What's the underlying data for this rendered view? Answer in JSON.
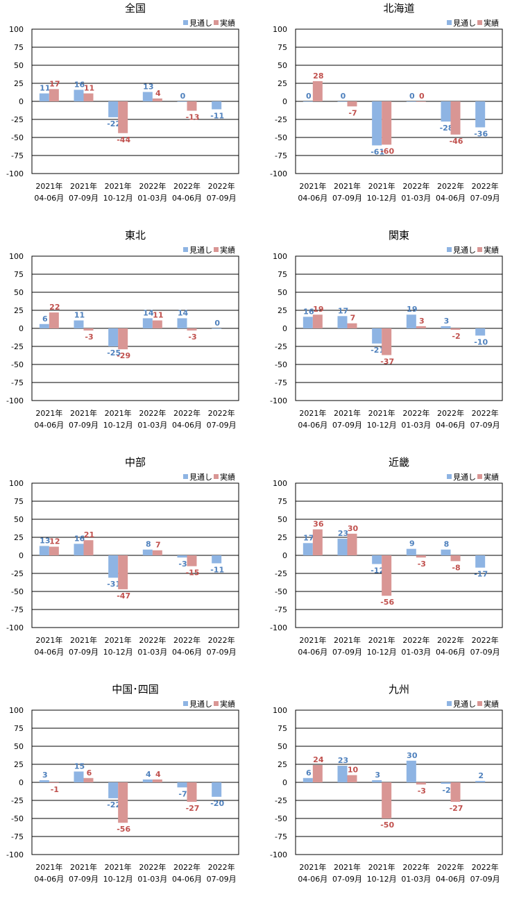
{
  "colors": {
    "forecast": "#8EB4E3",
    "actual": "#D99694",
    "forecast_label": "#4F81BD",
    "actual_label": "#C0504D"
  },
  "chart_data": [
    {
      "type": "bar",
      "title": "全国",
      "categories": [
        [
          "2021年",
          "04-06月"
        ],
        [
          "2021年",
          "07-09月"
        ],
        [
          "2021年",
          "10-12月"
        ],
        [
          "2022年",
          "01-03月"
        ],
        [
          "2022年",
          "04-06月"
        ],
        [
          "2022年",
          "07-09月"
        ]
      ],
      "ylim": [
        -100,
        100
      ],
      "yticks": [
        100,
        75,
        50,
        25,
        0,
        -25,
        -50,
        -75,
        -100
      ],
      "grid": true,
      "legend": "top-right",
      "series": [
        {
          "name": "見通し",
          "values": [
            11,
            16,
            -22,
            13,
            0,
            -11
          ]
        },
        {
          "name": "実績",
          "values": [
            17,
            11,
            -44,
            4,
            -13,
            null
          ]
        }
      ]
    },
    {
      "type": "bar",
      "title": "北海道",
      "categories": [
        [
          "2021年",
          "04-06月"
        ],
        [
          "2021年",
          "07-09月"
        ],
        [
          "2021年",
          "10-12月"
        ],
        [
          "2022年",
          "01-03月"
        ],
        [
          "2022年",
          "04-06月"
        ],
        [
          "2022年",
          "07-09月"
        ]
      ],
      "ylim": [
        -100,
        100
      ],
      "yticks": [
        100,
        75,
        50,
        25,
        0,
        -25,
        -50,
        -75,
        -100
      ],
      "grid": true,
      "legend": "top-right",
      "series": [
        {
          "name": "見通し",
          "values": [
            0,
            0,
            -61,
            0,
            -28,
            -36
          ]
        },
        {
          "name": "実績",
          "values": [
            28,
            -7,
            -60,
            0,
            -46,
            null
          ]
        }
      ]
    },
    {
      "type": "bar",
      "title": "東北",
      "categories": [
        [
          "2021年",
          "04-06月"
        ],
        [
          "2021年",
          "07-09月"
        ],
        [
          "2021年",
          "10-12月"
        ],
        [
          "2022年",
          "01-03月"
        ],
        [
          "2022年",
          "04-06月"
        ],
        [
          "2022年",
          "07-09月"
        ]
      ],
      "ylim": [
        -100,
        100
      ],
      "yticks": [
        100,
        75,
        50,
        25,
        0,
        -25,
        -50,
        -75,
        -100
      ],
      "grid": true,
      "legend": "top-right",
      "series": [
        {
          "name": "見通し",
          "values": [
            6,
            11,
            -25,
            14,
            14,
            0
          ]
        },
        {
          "name": "実績",
          "values": [
            22,
            -3,
            -29,
            11,
            -3,
            null
          ]
        }
      ]
    },
    {
      "type": "bar",
      "title": "関東",
      "categories": [
        [
          "2021年",
          "04-06月"
        ],
        [
          "2021年",
          "07-09月"
        ],
        [
          "2021年",
          "10-12月"
        ],
        [
          "2022年",
          "01-03月"
        ],
        [
          "2022年",
          "04-06月"
        ],
        [
          "2022年",
          "07-09月"
        ]
      ],
      "ylim": [
        -100,
        100
      ],
      "yticks": [
        100,
        75,
        50,
        25,
        0,
        -25,
        -50,
        -75,
        -100
      ],
      "grid": true,
      "legend": "top-right",
      "series": [
        {
          "name": "見通し",
          "values": [
            16,
            17,
            -21,
            19,
            3,
            -10
          ]
        },
        {
          "name": "実績",
          "values": [
            19,
            7,
            -37,
            3,
            -2,
            null
          ]
        }
      ]
    },
    {
      "type": "bar",
      "title": "中部",
      "categories": [
        [
          "2021年",
          "04-06月"
        ],
        [
          "2021年",
          "07-09月"
        ],
        [
          "2021年",
          "10-12月"
        ],
        [
          "2022年",
          "01-03月"
        ],
        [
          "2022年",
          "04-06月"
        ],
        [
          "2022年",
          "07-09月"
        ]
      ],
      "ylim": [
        -100,
        100
      ],
      "yticks": [
        100,
        75,
        50,
        25,
        0,
        -25,
        -50,
        -75,
        -100
      ],
      "grid": true,
      "legend": "top-right",
      "series": [
        {
          "name": "見通し",
          "values": [
            13,
            16,
            -31,
            8,
            -3,
            -11
          ]
        },
        {
          "name": "実績",
          "values": [
            12,
            21,
            -47,
            7,
            -15,
            null
          ]
        }
      ]
    },
    {
      "type": "bar",
      "title": "近畿",
      "categories": [
        [
          "2021年",
          "04-06月"
        ],
        [
          "2021年",
          "07-09月"
        ],
        [
          "2021年",
          "10-12月"
        ],
        [
          "2022年",
          "01-03月"
        ],
        [
          "2022年",
          "04-06月"
        ],
        [
          "2022年",
          "07-09月"
        ]
      ],
      "ylim": [
        -100,
        100
      ],
      "yticks": [
        100,
        75,
        50,
        25,
        0,
        -25,
        -50,
        -75,
        -100
      ],
      "grid": true,
      "legend": "top-right",
      "series": [
        {
          "name": "見通し",
          "values": [
            17,
            23,
            -12,
            9,
            8,
            -17
          ]
        },
        {
          "name": "実績",
          "values": [
            36,
            30,
            -56,
            -3,
            -8,
            null
          ]
        }
      ]
    },
    {
      "type": "bar",
      "title": "中国･四国",
      "categories": [
        [
          "2021年",
          "04-06月"
        ],
        [
          "2021年",
          "07-09月"
        ],
        [
          "2021年",
          "10-12月"
        ],
        [
          "2022年",
          "01-03月"
        ],
        [
          "2022年",
          "04-06月"
        ],
        [
          "2022年",
          "07-09月"
        ]
      ],
      "ylim": [
        -100,
        100
      ],
      "yticks": [
        100,
        75,
        50,
        25,
        0,
        -25,
        -50,
        -75,
        -100
      ],
      "grid": true,
      "legend": "top-right",
      "series": [
        {
          "name": "見通し",
          "values": [
            3,
            15,
            -22,
            4,
            -7,
            -20
          ]
        },
        {
          "name": "実績",
          "values": [
            -1,
            6,
            -56,
            4,
            -27,
            null
          ]
        }
      ]
    },
    {
      "type": "bar",
      "title": "九州",
      "categories": [
        [
          "2021年",
          "04-06月"
        ],
        [
          "2021年",
          "07-09月"
        ],
        [
          "2021年",
          "10-12月"
        ],
        [
          "2022年",
          "01-03月"
        ],
        [
          "2022年",
          "04-06月"
        ],
        [
          "2022年",
          "07-09月"
        ]
      ],
      "ylim": [
        -100,
        100
      ],
      "yticks": [
        100,
        75,
        50,
        25,
        0,
        -25,
        -50,
        -75,
        -100
      ],
      "grid": true,
      "legend": "top-right",
      "series": [
        {
          "name": "見通し",
          "values": [
            6,
            23,
            3,
            30,
            -2,
            2
          ]
        },
        {
          "name": "実績",
          "values": [
            24,
            10,
            -50,
            -3,
            -27,
            null
          ]
        }
      ]
    }
  ]
}
